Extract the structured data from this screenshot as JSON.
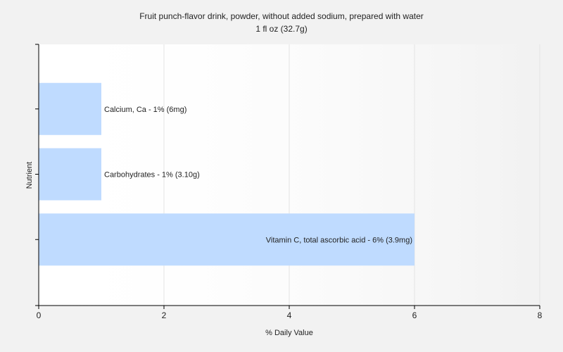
{
  "chart_data": {
    "type": "bar",
    "orientation": "horizontal",
    "title": "Fruit punch-flavor drink, powder, without added sodium, prepared with water",
    "subtitle": "1 fl oz (32.7g)",
    "xlabel": "% Daily Value",
    "ylabel": "Nutrient",
    "xlim": [
      0,
      8
    ],
    "xticks": [
      "0",
      "2",
      "4",
      "6",
      "8"
    ],
    "grid": true,
    "legend": "none",
    "bar_color": "#bfdbff",
    "categories": [
      "Calcium, Ca",
      "Carbohydrates",
      "Vitamin C, total ascorbic acid"
    ],
    "values": [
      1,
      1,
      6
    ],
    "labels": [
      "Calcium, Ca - 1% (6mg)",
      "Carbohydrates - 1% (3.10g)",
      "Vitamin C, total ascorbic acid - 6% (3.9mg)"
    ]
  }
}
